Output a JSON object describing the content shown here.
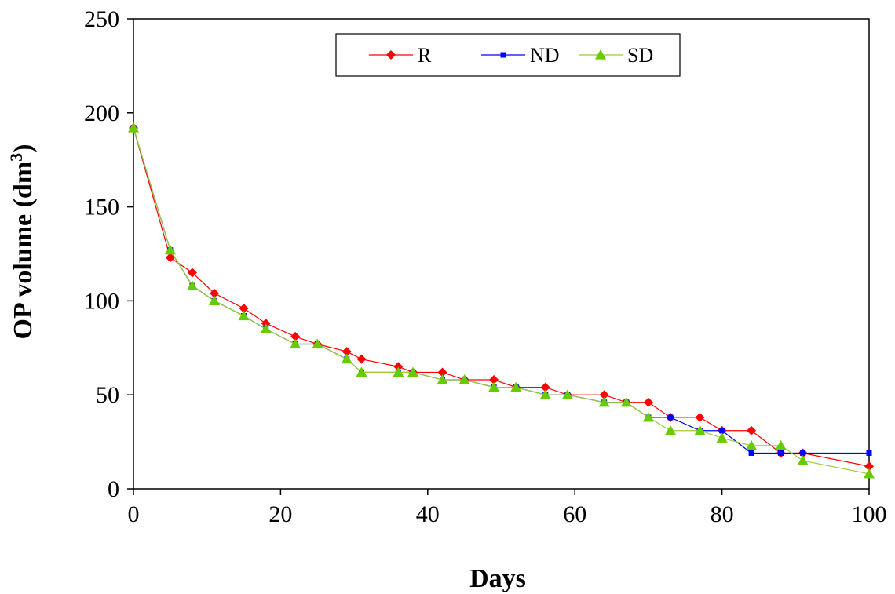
{
  "chart_data": {
    "type": "line",
    "title": "",
    "xlabel": "Days",
    "ylabel": "OP volume (dm",
    "ylabel_sup": "3",
    "ylabel_close": ")",
    "xlim": [
      0,
      100
    ],
    "ylim": [
      0,
      250
    ],
    "xticks": [
      0,
      20,
      40,
      60,
      80,
      100
    ],
    "yticks": [
      0,
      50,
      100,
      150,
      200,
      250
    ],
    "grid": false,
    "legend_position": "top-center",
    "series": [
      {
        "name": "R",
        "color": "#ff0000",
        "marker": "diamond",
        "x": [
          0,
          5,
          8,
          11,
          15,
          18,
          22,
          25,
          29,
          31,
          36,
          38,
          42,
          45,
          49,
          52,
          56,
          59,
          64,
          67,
          70,
          73,
          77,
          80,
          84,
          88,
          91,
          100
        ],
        "y": [
          192,
          123,
          115,
          104,
          96,
          88,
          81,
          77,
          73,
          69,
          65,
          62,
          62,
          58,
          58,
          54,
          54,
          50,
          50,
          46,
          46,
          38,
          38,
          31,
          31,
          19,
          19,
          12
        ]
      },
      {
        "name": "ND",
        "color": "#0000ff",
        "marker": "square",
        "x": [
          0,
          5,
          8,
          11,
          15,
          18,
          22,
          25,
          29,
          31,
          36,
          38,
          42,
          45,
          49,
          52,
          56,
          59,
          64,
          67,
          70,
          73,
          77,
          80,
          84,
          88,
          91,
          100
        ],
        "y": [
          192,
          127,
          108,
          100,
          92,
          85,
          77,
          77,
          69,
          62,
          62,
          62,
          58,
          58,
          54,
          54,
          50,
          50,
          46,
          46,
          38,
          38,
          31,
          31,
          19,
          19,
          19,
          19
        ]
      },
      {
        "name": "SD",
        "color": "#66cc00",
        "line_color": "#99cc33",
        "marker": "triangle",
        "x": [
          0,
          5,
          8,
          11,
          15,
          18,
          22,
          25,
          29,
          31,
          36,
          38,
          42,
          45,
          49,
          52,
          56,
          59,
          64,
          67,
          70,
          73,
          77,
          80,
          84,
          88,
          91,
          100
        ],
        "y": [
          192,
          127,
          108,
          100,
          92,
          85,
          77,
          77,
          69,
          62,
          62,
          62,
          58,
          58,
          54,
          54,
          50,
          50,
          46,
          46,
          38,
          31,
          31,
          27,
          23,
          23,
          15,
          8
        ]
      }
    ]
  }
}
